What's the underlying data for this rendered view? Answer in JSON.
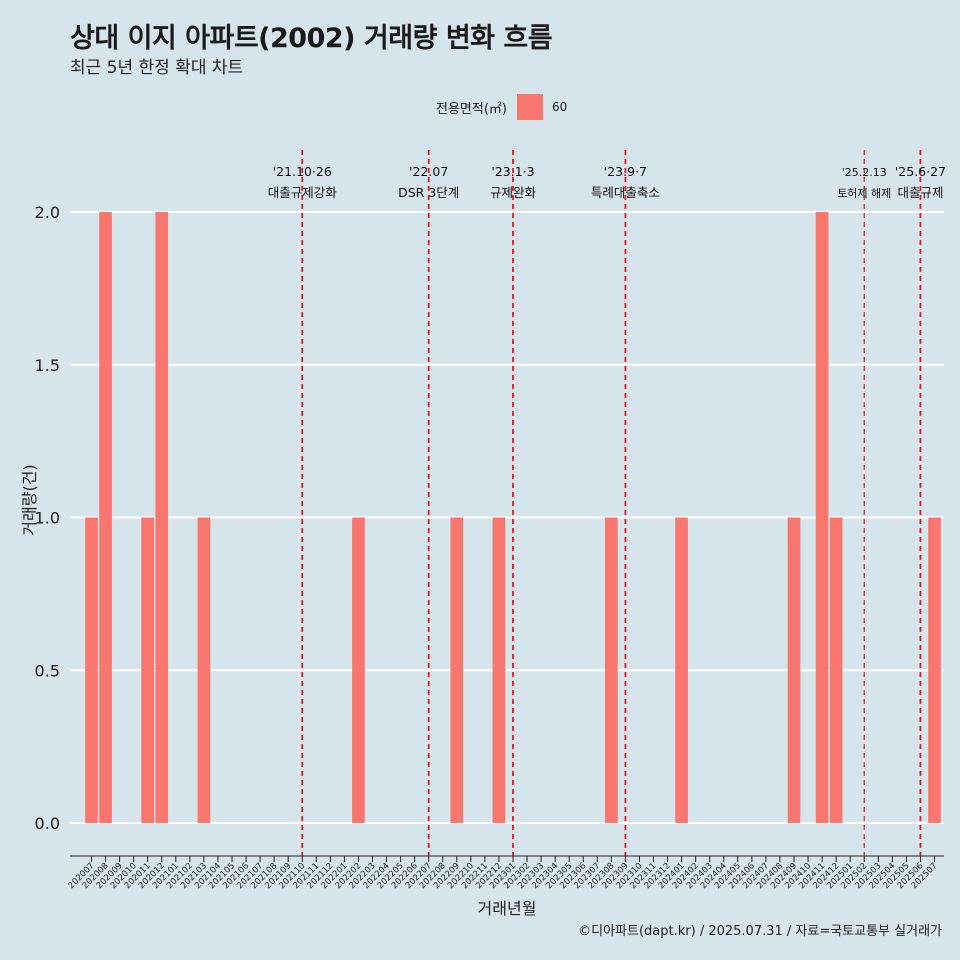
{
  "title": "상대 이지 아파트(2002) 거래량 변화 흐름",
  "subtitle": "최근 5년 한정 확대 차트",
  "caption": "©디아파트(dapt.kr) / 2025.07.31 / 자료=국토교통부 실거래가",
  "colors": {
    "bar": "#f8766d",
    "background": "#d6e4ec",
    "grid": "#ffffff",
    "annotation": "#e41a1c"
  },
  "chart_data": {
    "type": "bar",
    "xlabel": "거래년월",
    "ylabel": "거래량(건)",
    "ylim": [
      0,
      2
    ],
    "yticks": [
      "0.0",
      "0.5",
      "1.0",
      "1.5",
      "2.0"
    ],
    "legend": {
      "title": "전용면적(㎡)",
      "position": "top",
      "series": [
        "60"
      ]
    },
    "categories": [
      "202007",
      "202008",
      "202009",
      "202010",
      "202011",
      "202012",
      "202101",
      "202102",
      "202103",
      "202104",
      "202105",
      "202106",
      "202107",
      "202108",
      "202109",
      "202110",
      "202111",
      "202112",
      "202201",
      "202202",
      "202203",
      "202204",
      "202205",
      "202206",
      "202207",
      "202208",
      "202209",
      "202210",
      "202211",
      "202212",
      "202301",
      "202302",
      "202303",
      "202304",
      "202305",
      "202306",
      "202307",
      "202308",
      "202309",
      "202310",
      "202311",
      "202312",
      "202401",
      "202402",
      "202403",
      "202404",
      "202405",
      "202406",
      "202407",
      "202408",
      "202409",
      "202410",
      "202411",
      "202412",
      "202501",
      "202502",
      "202503",
      "202504",
      "202505",
      "202506",
      "202507"
    ],
    "series": [
      {
        "name": "60",
        "values": [
          1,
          2,
          0,
          0,
          1,
          2,
          0,
          0,
          1,
          0,
          0,
          0,
          0,
          0,
          0,
          0,
          0,
          0,
          0,
          1,
          0,
          0,
          0,
          0,
          0,
          0,
          1,
          0,
          0,
          1,
          0,
          0,
          0,
          0,
          0,
          0,
          0,
          1,
          0,
          0,
          0,
          0,
          1,
          0,
          0,
          0,
          0,
          0,
          0,
          0,
          1,
          0,
          2,
          1,
          0,
          0,
          0,
          0,
          0,
          0,
          1
        ]
      }
    ],
    "annotations": [
      {
        "x": "202110",
        "date": "'21.10·26",
        "label": "대출규제강화",
        "style": "bold"
      },
      {
        "x": "202207",
        "date": "'22.07",
        "label": "DSR 3단계",
        "style": "bold"
      },
      {
        "x": "202301",
        "date": "'23.1·3",
        "label": "규제완화",
        "style": "bold"
      },
      {
        "x": "202309",
        "date": "'23.9·7",
        "label": "특례대출축소",
        "style": "bold"
      },
      {
        "x": "202502",
        "date": "'25.2.13",
        "label": "토허제 해제",
        "style": "thin"
      },
      {
        "x": "202506",
        "date": "'25.6·27",
        "label": "대출규제",
        "style": "bold"
      }
    ]
  }
}
